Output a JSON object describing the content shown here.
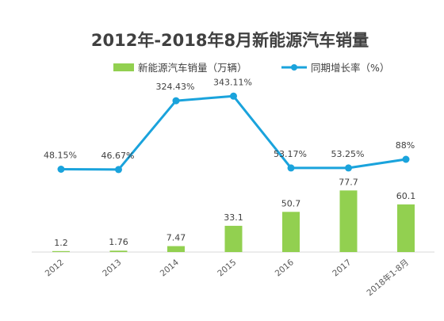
{
  "chart_data": {
    "type": "bar",
    "title": "2012年-2018年8月新能源汽车销量",
    "xlabel": "",
    "ylabel": "",
    "categories": [
      "2012",
      "2013",
      "2014",
      "2015",
      "2016",
      "2017",
      "2018年1-8月"
    ],
    "series": [
      {
        "name": "新能源汽车销量（万辆）",
        "type": "bar",
        "color": "#92d050",
        "values": [
          1.2,
          1.76,
          7.47,
          33.1,
          50.7,
          77.7,
          60.1
        ],
        "labels": [
          "1.2",
          "1.76",
          "7.47",
          "33.1",
          "50.7",
          "77.7",
          "60.1"
        ]
      },
      {
        "name": "同期增长率（%）",
        "type": "line",
        "color": "#1aa3dc",
        "values": [
          48.15,
          46.67,
          324.43,
          343.11,
          53.17,
          53.25,
          88
        ],
        "labels": [
          "48.15%",
          "46.67%",
          "324.43%",
          "343.11%",
          "53.17%",
          "53.25%",
          "88%"
        ]
      }
    ],
    "grid": false,
    "legend_position": "top"
  }
}
